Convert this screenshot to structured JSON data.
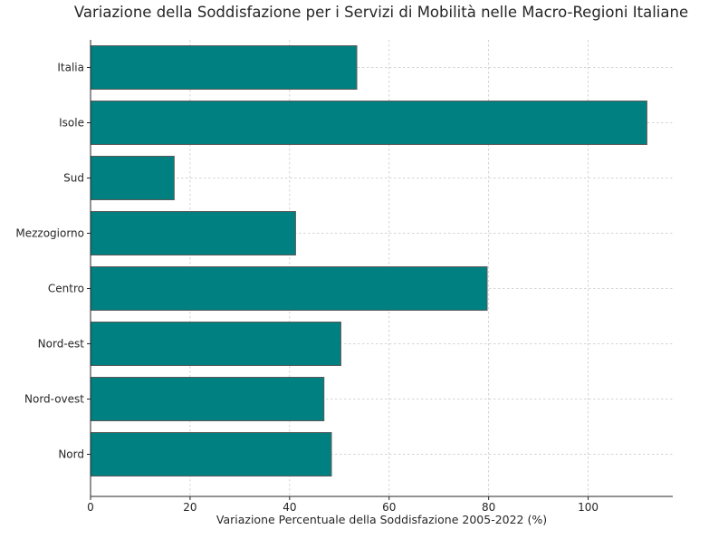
{
  "chart_data": {
    "type": "bar",
    "orientation": "horizontal",
    "title": "Variazione della Soddisfazione per i Servizi di Mobilità nelle Macro-Regioni Italiane",
    "xlabel": "Variazione Percentuale della Soddisfazione 2005-2022 (%)",
    "ylabel": "",
    "categories": [
      "Italia",
      "Isole",
      "Sud",
      "Mezzogiorno",
      "Centro",
      "Nord-est",
      "Nord-ovest",
      "Nord"
    ],
    "values": [
      53.5,
      111.8,
      16.8,
      41.2,
      79.7,
      50.3,
      46.9,
      48.4
    ],
    "xlim": [
      0,
      117
    ],
    "xticks": [
      0,
      20,
      40,
      60,
      80,
      100
    ],
    "grid": true,
    "bar_color": "#008080",
    "bar_edge_color": "#5a5a5a"
  }
}
